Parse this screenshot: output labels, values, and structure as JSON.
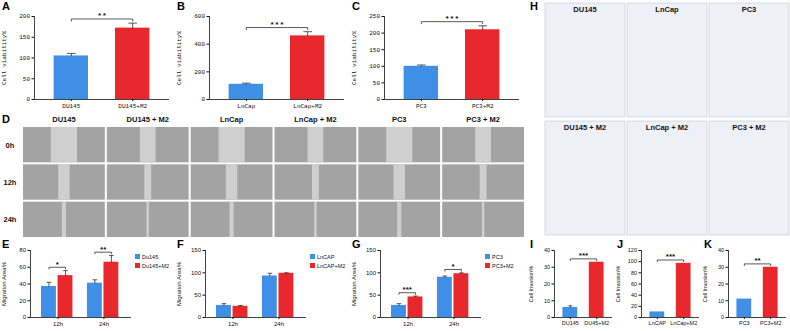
{
  "chart_data": [
    {
      "panel": "A",
      "type": "bar",
      "categories": [
        "DU145",
        "DU145+M2"
      ],
      "values": [
        105,
        172
      ],
      "errors": [
        6,
        12
      ],
      "colors": [
        "#3f8fe6",
        "#e8282c"
      ],
      "y_label": "Cell viability%",
      "ylim": [
        0,
        200
      ],
      "yticks": [
        0,
        50,
        100,
        150,
        200
      ],
      "annotations": [
        {
          "text": "**",
          "between": [
            "DU145",
            "DU145+M2"
          ]
        }
      ]
    },
    {
      "panel": "B",
      "type": "bar",
      "categories": [
        "LnCap",
        "LnCap+M2"
      ],
      "values": [
        110,
        460
      ],
      "errors": [
        8,
        30
      ],
      "colors": [
        "#3f8fe6",
        "#e8282c"
      ],
      "y_label": "Cell viability%",
      "ylim": [
        0,
        600
      ],
      "yticks": [
        0,
        200,
        400,
        600
      ],
      "annotations": [
        {
          "text": "***",
          "between": [
            "LnCap",
            "LnCap+M2"
          ]
        }
      ]
    },
    {
      "panel": "C",
      "type": "bar",
      "categories": [
        "PC3",
        "PC3+M2"
      ],
      "values": [
        100,
        210
      ],
      "errors": [
        4,
        12
      ],
      "colors": [
        "#3f8fe6",
        "#e8282c"
      ],
      "y_label": "Cell viability%",
      "ylim": [
        0,
        250
      ],
      "yticks": [
        0,
        50,
        100,
        150,
        200,
        250
      ],
      "annotations": [
        {
          "text": "***",
          "between": [
            "PC3",
            "PC3+M2"
          ]
        }
      ]
    },
    {
      "panel": "E",
      "type": "bar",
      "categories": [
        "12h",
        "24h"
      ],
      "series": [
        {
          "name": "Du145",
          "color": "#3f8fe6",
          "values": [
            37,
            41
          ],
          "errors": [
            5,
            4
          ]
        },
        {
          "name": "Du145+M2",
          "color": "#e8282c",
          "values": [
            50,
            66
          ],
          "errors": [
            6,
            8
          ]
        }
      ],
      "y_label": "Migration Area%",
      "ylim": [
        0,
        80
      ],
      "yticks": [
        0,
        20,
        40,
        60,
        80
      ],
      "legend": "right",
      "annotations": [
        {
          "text": "*",
          "category": "12h"
        },
        {
          "text": "**",
          "category": "24h"
        }
      ]
    },
    {
      "panel": "F",
      "type": "bar",
      "categories": [
        "12h",
        "24h"
      ],
      "series": [
        {
          "name": "LnCAP",
          "color": "#3f8fe6",
          "values": [
            27,
            93
          ],
          "errors": [
            4,
            6
          ]
        },
        {
          "name": "LnCAP+M2",
          "color": "#e8282c",
          "values": [
            25,
            99
          ],
          "errors": [
            2,
            1
          ]
        }
      ],
      "y_label": "Migration Area%",
      "ylim": [
        0,
        150
      ],
      "yticks": [
        0,
        50,
        100,
        150
      ],
      "legend": "right"
    },
    {
      "panel": "G",
      "type": "bar",
      "categories": [
        "12h",
        "24h"
      ],
      "series": [
        {
          "name": "PC3",
          "color": "#3f8fe6",
          "values": [
            27,
            90
          ],
          "errors": [
            4,
            3
          ]
        },
        {
          "name": "PC3+M2",
          "color": "#e8282c",
          "values": [
            46,
            98
          ],
          "errors": [
            2,
            2
          ]
        }
      ],
      "y_label": "Migration Area%",
      "ylim": [
        0,
        150
      ],
      "yticks": [
        0,
        50,
        100,
        150
      ],
      "legend": "right",
      "annotations": [
        {
          "text": "***",
          "category": "12h"
        },
        {
          "text": "*",
          "category": "24h"
        }
      ]
    },
    {
      "panel": "I",
      "type": "bar",
      "categories": [
        "DU145",
        "DU45+M2"
      ],
      "values": [
        6,
        33
      ],
      "errors": [
        1,
        null
      ],
      "colors": [
        "#3f8fe6",
        "#e8282c"
      ],
      "y_label": "Cell Invasion%",
      "ylim": [
        0,
        40
      ],
      "yticks": [
        0,
        10,
        20,
        30,
        40
      ],
      "annotations": [
        {
          "text": "***",
          "between": [
            "DU145",
            "DU45+M2"
          ]
        }
      ]
    },
    {
      "panel": "J",
      "type": "bar",
      "categories": [
        "LnCAP",
        "LnCap+M2"
      ],
      "values": [
        10,
        97
      ],
      "colors": [
        "#3f8fe6",
        "#e8282c"
      ],
      "y_label": "Cell Invasion%",
      "ylim": [
        0,
        120
      ],
      "yticks": [
        0,
        20,
        40,
        60,
        80,
        100,
        120
      ],
      "annotations": [
        {
          "text": "***",
          "between": [
            "LnCAP",
            "LnCap+M2"
          ]
        }
      ]
    },
    {
      "panel": "K",
      "type": "bar",
      "categories": [
        "PC3",
        "PC3+M2"
      ],
      "values": [
        11,
        30
      ],
      "colors": [
        "#3f8fe6",
        "#e8282c"
      ],
      "y_label": "Cell Invasion%",
      "ylim": [
        0,
        40
      ],
      "yticks": [
        0,
        10,
        20,
        30,
        40
      ],
      "annotations": [
        {
          "text": "**",
          "between": [
            "PC3",
            "PC3+M2"
          ]
        }
      ]
    }
  ],
  "image_panels": [
    {
      "panel": "D",
      "columns": [
        "DU145",
        "DU145 + M2",
        "LnCap",
        "LnCap + M2",
        "PC3",
        "PC3 + M2"
      ],
      "rows": [
        "0h",
        "12h",
        "24h"
      ]
    },
    {
      "panel": "H",
      "cells": [
        [
          "DU145",
          "LnCap",
          "PC3"
        ],
        [
          "DU145 + M2",
          "LnCap + M2",
          "PC3 + M2"
        ]
      ]
    }
  ]
}
